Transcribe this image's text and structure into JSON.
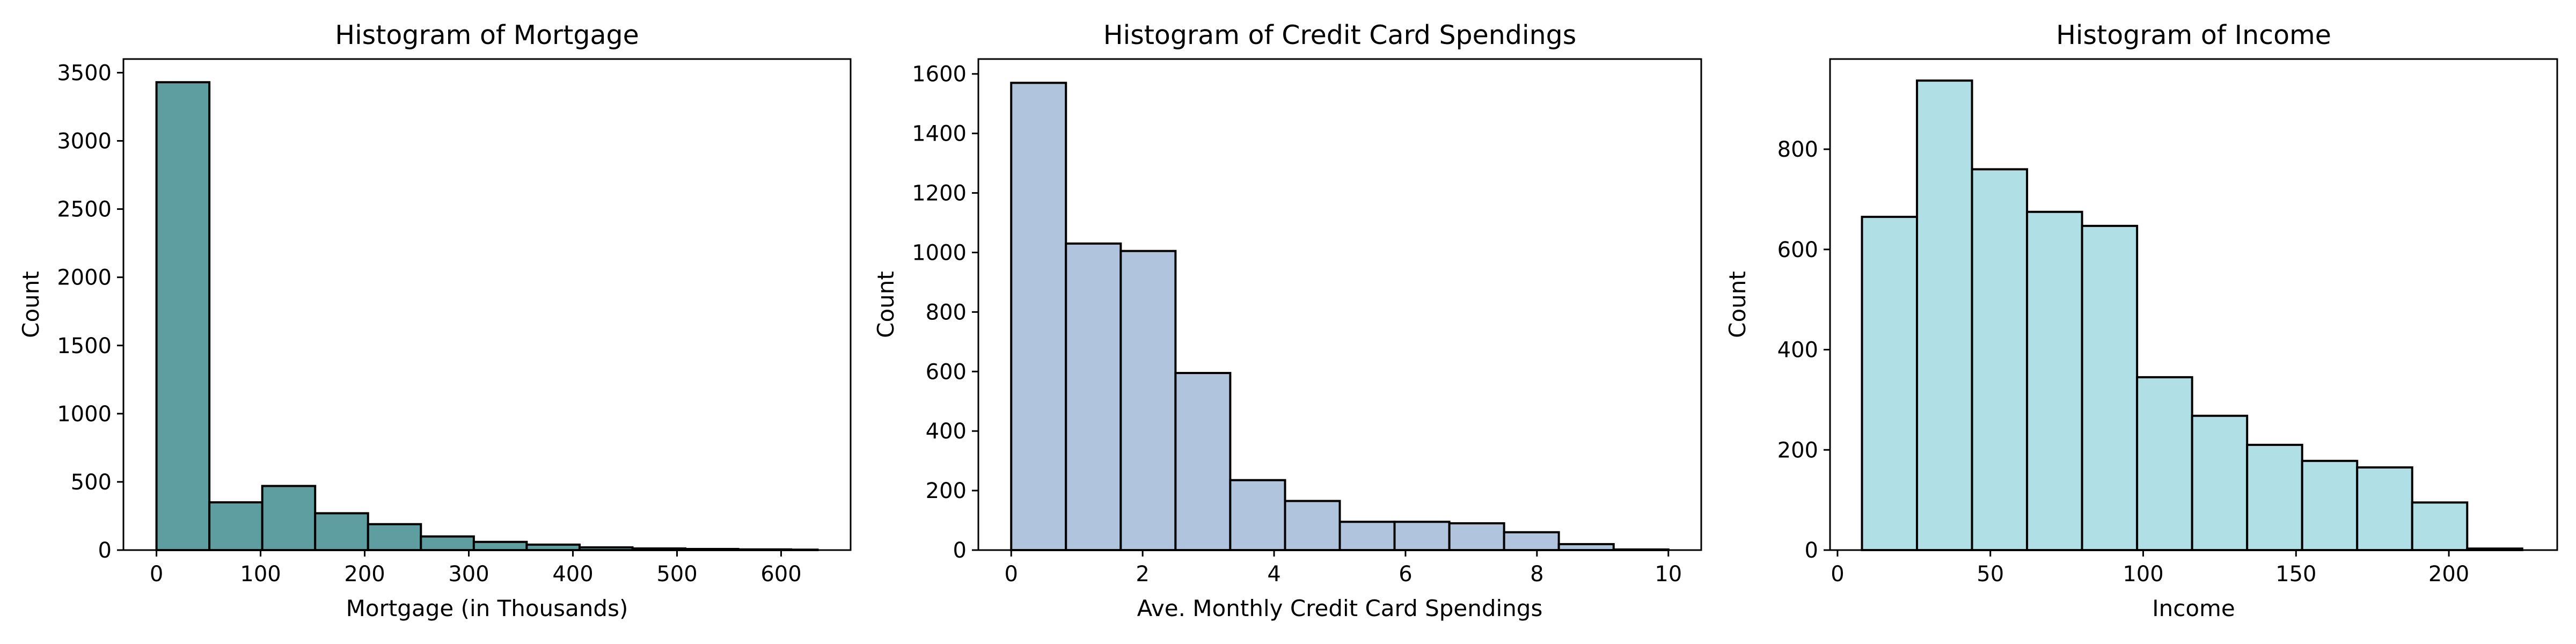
{
  "chart_data": [
    {
      "type": "bar",
      "title": "Histogram of Mortgage",
      "xlabel": "Mortgage (in Thousands)",
      "ylabel": "Count",
      "color": "#5f9ea0",
      "edge_color": "#000000",
      "grid": false,
      "xlim": [
        -31.75,
        666.75
      ],
      "ylim": [
        0,
        3600
      ],
      "xticks": [
        0,
        100,
        200,
        300,
        400,
        500,
        600
      ],
      "yticks": [
        0,
        500,
        1000,
        1500,
        2000,
        2500,
        3000,
        3500
      ],
      "bin_edges": [
        0,
        50.8,
        101.6,
        152.4,
        203.2,
        254,
        304.8,
        355.6,
        406.4,
        457.2,
        508,
        558.8,
        609.6,
        635
      ],
      "values": [
        3430,
        350,
        470,
        270,
        190,
        100,
        60,
        40,
        20,
        12,
        8,
        5,
        3
      ]
    },
    {
      "type": "bar",
      "title": "Histogram of Credit Card Spendings",
      "xlabel": "Ave. Monthly Credit Card Spendings",
      "ylabel": "Count",
      "color": "#b0c4de",
      "edge_color": "#000000",
      "grid": false,
      "xlim": [
        -0.5,
        10.5
      ],
      "ylim": [
        0,
        1650
      ],
      "xticks": [
        0,
        2,
        4,
        6,
        8,
        10
      ],
      "yticks": [
        0,
        200,
        400,
        600,
        800,
        1000,
        1200,
        1400,
        1600
      ],
      "bin_edges": [
        0,
        0.833,
        1.667,
        2.5,
        3.333,
        4.167,
        5,
        5.833,
        6.667,
        7.5,
        8.333,
        9.167,
        10
      ],
      "values": [
        1570,
        1030,
        1005,
        595,
        235,
        165,
        95,
        95,
        90,
        60,
        20,
        2
      ]
    },
    {
      "type": "bar",
      "title": "Histogram of Income",
      "xlabel": "Income",
      "ylabel": "Count",
      "color": "#b0e0e6",
      "edge_color": "#000000",
      "grid": false,
      "xlim": [
        -2.45,
        235.45
      ],
      "ylim": [
        0,
        980
      ],
      "xticks": [
        0,
        50,
        100,
        150,
        200
      ],
      "yticks": [
        0,
        200,
        400,
        600,
        800
      ],
      "bin_edges": [
        8,
        26,
        44,
        62,
        80,
        98,
        116,
        134,
        152,
        170,
        188,
        206,
        224
      ],
      "values": [
        665,
        937,
        760,
        675,
        647,
        345,
        268,
        210,
        178,
        165,
        95,
        3
      ]
    }
  ]
}
